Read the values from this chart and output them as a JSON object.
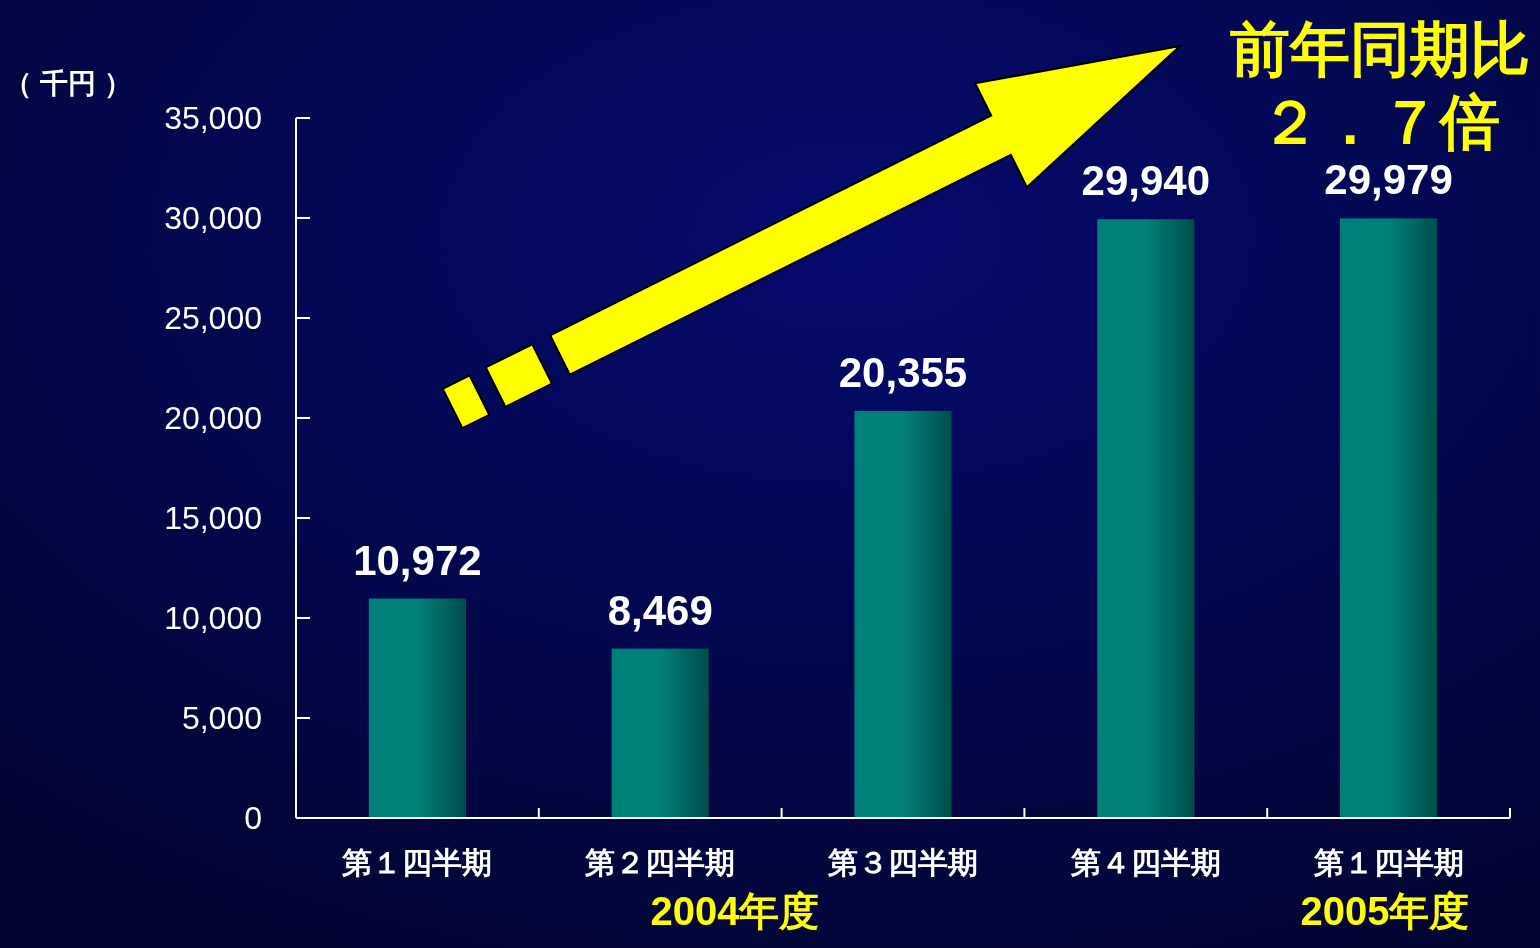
{
  "chart_data": {
    "type": "bar",
    "ylabel": "（ 千円 ）",
    "categories": [
      "第１四半期",
      "第２四半期",
      "第３四半期",
      "第４四半期",
      "第１四半期"
    ],
    "values": [
      10972,
      8469,
      20355,
      29940,
      29979
    ],
    "value_labels": [
      "10,972",
      "8,469",
      "20,355",
      "29,940",
      "29,979"
    ],
    "color": "#008078",
    "ylim": [
      0,
      35000
    ],
    "yticks": [
      {
        "value": 0,
        "label": "0"
      },
      {
        "value": 5000,
        "label": "5,000"
      },
      {
        "value": 10000,
        "label": "10,000"
      },
      {
        "value": 15000,
        "label": "15,000"
      },
      {
        "value": 20000,
        "label": "20,000"
      },
      {
        "value": 25000,
        "label": "25,000"
      },
      {
        "value": 30000,
        "label": "30,000"
      },
      {
        "value": 35000,
        "label": "35,000"
      }
    ],
    "annotations": [
      "前年同期比",
      "２．７倍",
      "2004年度",
      "2005年度"
    ],
    "grid": false
  }
}
